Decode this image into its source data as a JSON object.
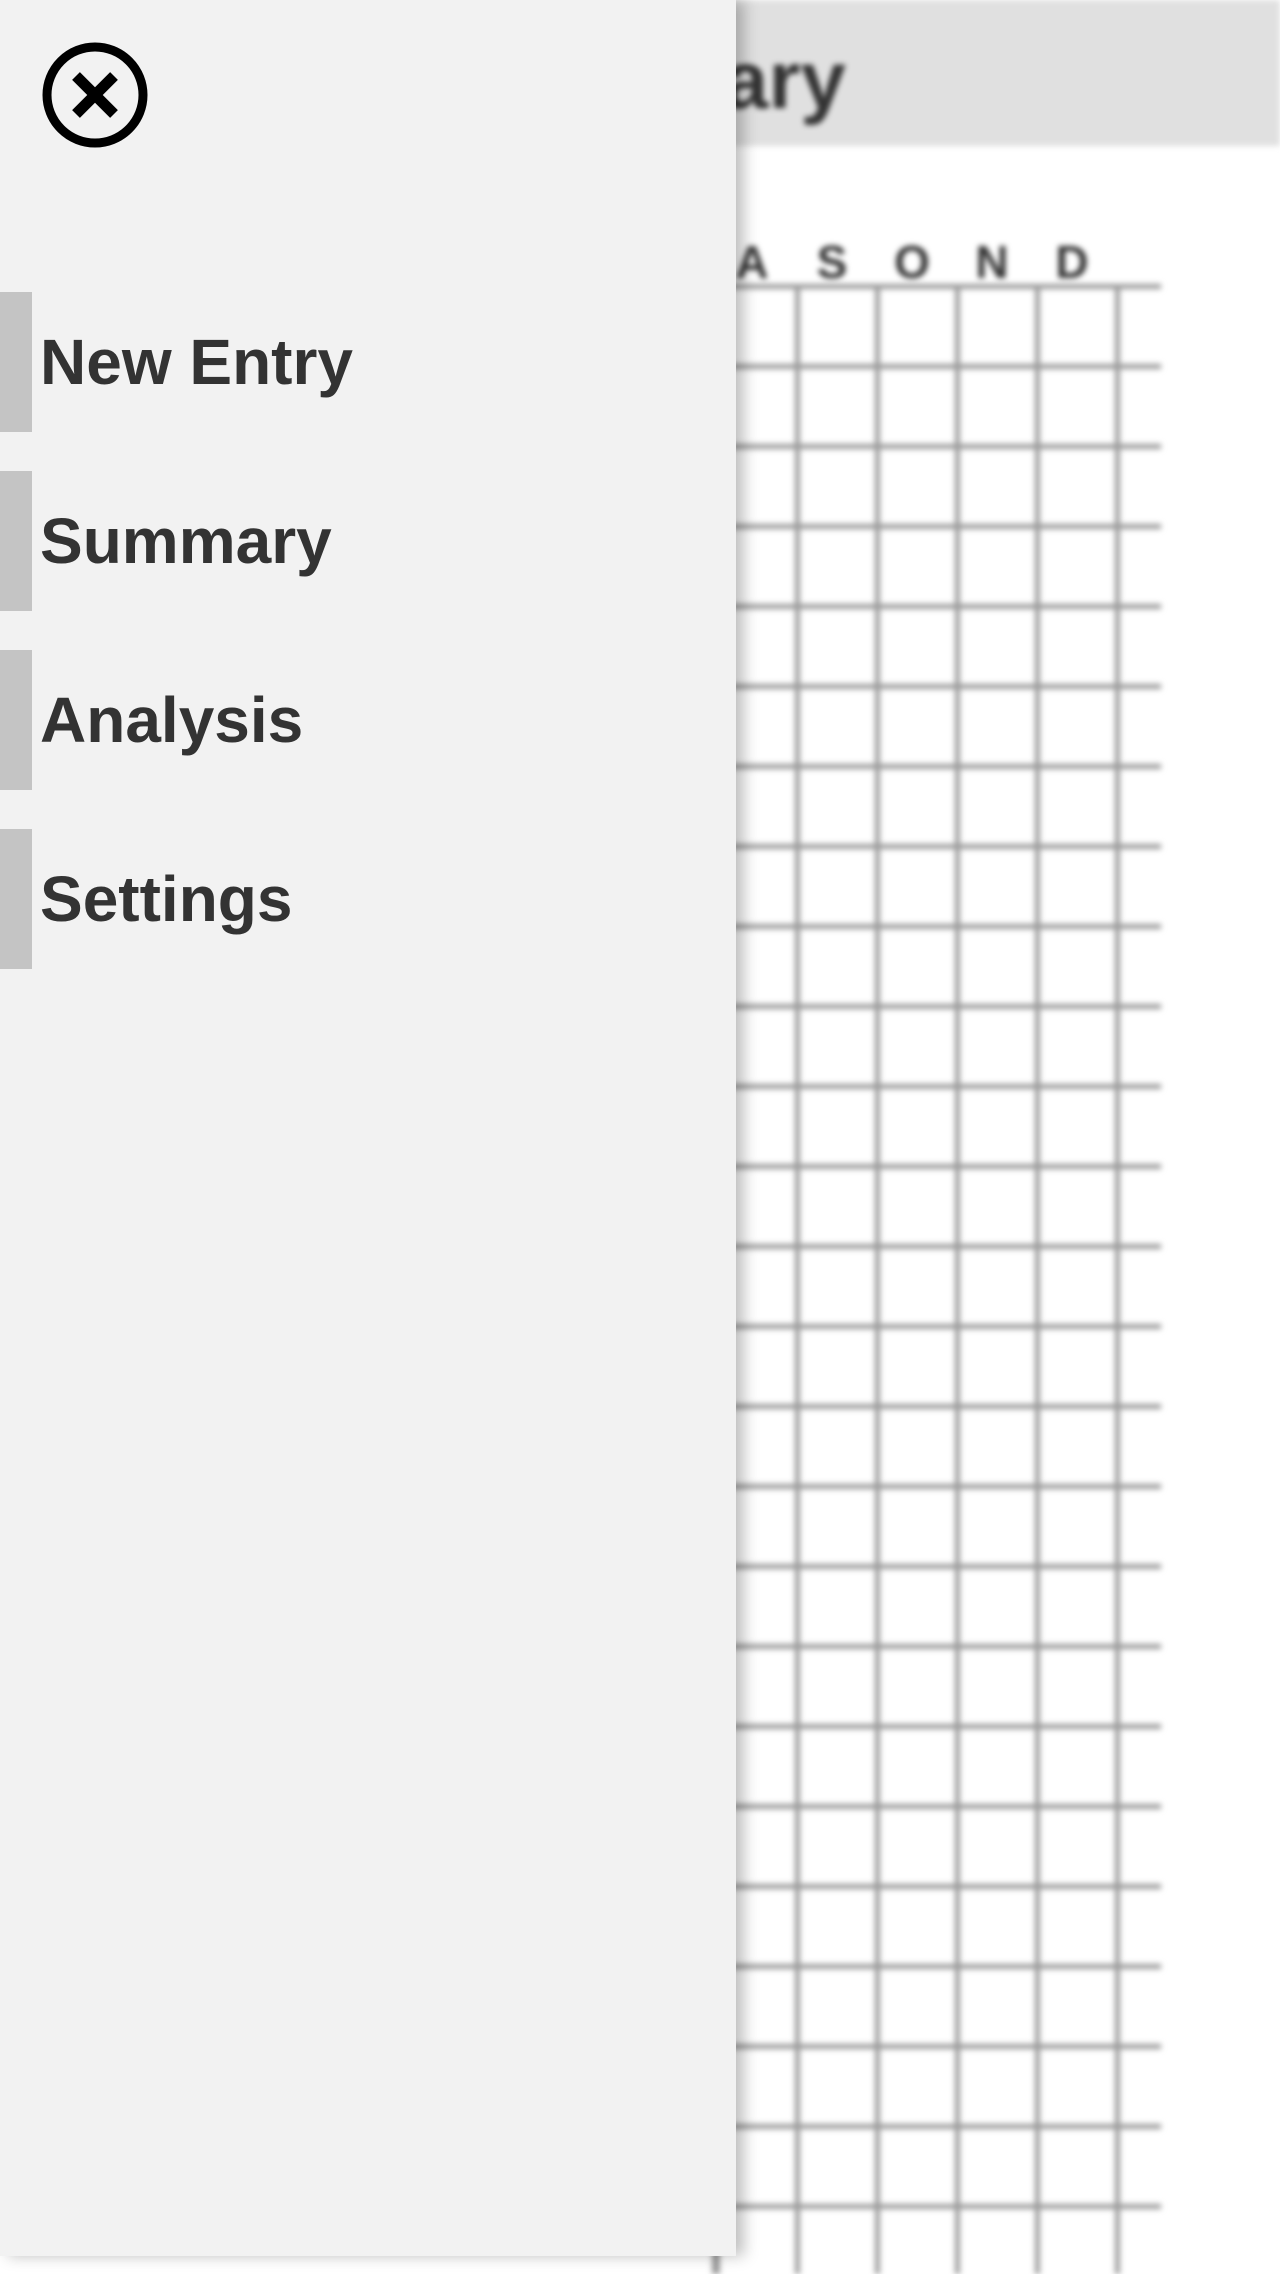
{
  "background_page": {
    "title_fragment": "ary",
    "month_headers": [
      "A",
      "S",
      "O",
      "N",
      "D"
    ],
    "header_color": "#e0e0e0"
  },
  "drawer": {
    "close_icon": "close-circle-icon",
    "background_color": "#f2f2f2",
    "accent_color": "#c4c4c4",
    "items": [
      {
        "label": "New Entry"
      },
      {
        "label": "Summary"
      },
      {
        "label": "Analysis"
      },
      {
        "label": "Settings"
      }
    ]
  }
}
